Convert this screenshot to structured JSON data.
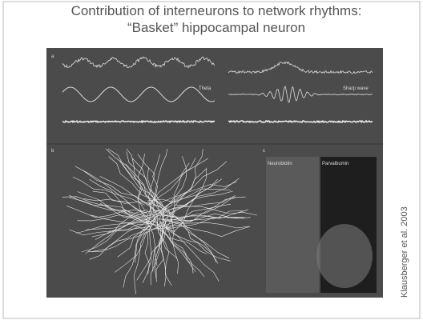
{
  "header": {
    "title_line1": "Contribution of interneurons to network rhythms:",
    "title_line2": "“Basket” hippocampal neuron"
  },
  "figure": {
    "panel_a": "a",
    "panel_b": "b",
    "panel_c": "c",
    "trace_left": "Theta",
    "trace_right": "Sharp wave",
    "stain_left": "Neurobiotin",
    "stain_right": "Parvalbumin"
  },
  "citation": "Klausberger et al. 2003"
}
